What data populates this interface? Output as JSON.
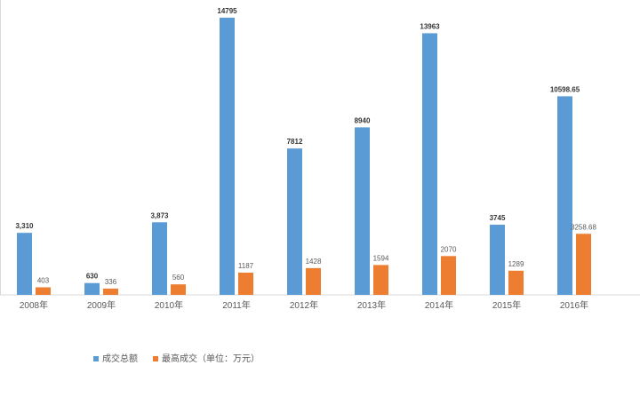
{
  "chart_data": {
    "type": "bar",
    "categories": [
      "2008年",
      "2009年",
      "2010年",
      "2011年",
      "2012年",
      "2013年",
      "2014年",
      "2015年",
      "2016年"
    ],
    "series": [
      {
        "name": "成交总额",
        "color": "#5B9BD5",
        "values": [
          3310,
          630,
          3873,
          14795,
          7812,
          8940,
          13963,
          3745,
          10598.65
        ],
        "labels": [
          "3,310",
          "630",
          "3,873",
          "14795",
          "7812",
          "8940",
          "13963",
          "3745",
          "10598.65"
        ]
      },
      {
        "name": "最高成交（单位：万元）",
        "color": "#ED7D31",
        "values": [
          403,
          336,
          560,
          1187,
          1428,
          1594,
          2070,
          1289,
          3258.68
        ],
        "labels": [
          "403",
          "336",
          "560",
          "1187",
          "1428",
          "1594",
          "2070",
          "1289",
          "3258.68"
        ]
      }
    ],
    "ylim": [
      0,
      15500
    ],
    "grid": false,
    "legend_position": "bottom-left"
  }
}
